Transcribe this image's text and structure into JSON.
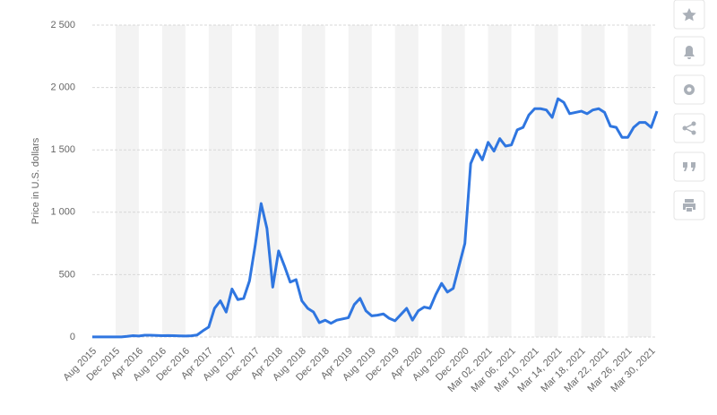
{
  "chart_data": {
    "type": "line",
    "y_label": "Price in U.S. dollars",
    "color": "#2f76e0",
    "categories": [
      "Aug 2015",
      null,
      null,
      null,
      "Dec 2015",
      null,
      null,
      null,
      "Apr 2016",
      null,
      null,
      null,
      "Aug 2016",
      null,
      null,
      null,
      "Dec 2016",
      null,
      null,
      null,
      "Apr 2017",
      null,
      null,
      null,
      "Aug 2017",
      null,
      null,
      null,
      "Dec 2017",
      null,
      null,
      null,
      "Apr 2018",
      null,
      null,
      null,
      "Aug 2018",
      null,
      null,
      null,
      "Dec 2018",
      null,
      null,
      null,
      "Apr 2019",
      null,
      null,
      null,
      "Aug 2019",
      null,
      null,
      null,
      "Dec 2019",
      null,
      null,
      null,
      "Apr 2020",
      null,
      null,
      null,
      "Aug 2020",
      null,
      null,
      null,
      "Dec 2020",
      null,
      null,
      null,
      "Mar 02, 2021",
      null,
      null,
      null,
      "Mar 06, 2021",
      null,
      null,
      null,
      "Mar 10, 2021",
      null,
      null,
      null,
      "Mar 14, 2021",
      null,
      null,
      null,
      "Mar 18, 2021",
      null,
      null,
      null,
      "Mar 22, 2021",
      null,
      null,
      null,
      "Mar 26, 2021",
      null,
      null,
      null,
      "Mar 30, 2021",
      null
    ],
    "values": [
      1,
      1,
      1,
      1,
      1,
      1,
      5,
      11,
      8,
      14,
      14,
      13,
      11,
      12,
      11,
      9,
      8,
      10,
      16,
      50,
      80,
      230,
      290,
      200,
      385,
      300,
      310,
      450,
      740,
      1070,
      870,
      400,
      690,
      570,
      440,
      460,
      290,
      230,
      200,
      115,
      135,
      110,
      135,
      145,
      155,
      260,
      310,
      210,
      170,
      175,
      185,
      150,
      130,
      180,
      230,
      135,
      210,
      240,
      230,
      340,
      430,
      360,
      390,
      570,
      750,
      1390,
      1500,
      1420,
      1560,
      1490,
      1590,
      1530,
      1540,
      1660,
      1680,
      1780,
      1830,
      1830,
      1820,
      1760,
      1910,
      1880,
      1790,
      1800,
      1810,
      1790,
      1820,
      1830,
      1800,
      1690,
      1680,
      1600,
      1600,
      1680,
      1720,
      1720,
      1680,
      1810
    ],
    "ylim": [
      0,
      2500
    ],
    "yticks": [
      0,
      500,
      {
        "value": 1000,
        "label": "1 000"
      },
      {
        "value": 1500,
        "label": "1 500"
      },
      {
        "value": 2000,
        "label": "2 000"
      },
      {
        "value": 2500,
        "label": "2 500"
      }
    ],
    "grid": true
  }
}
